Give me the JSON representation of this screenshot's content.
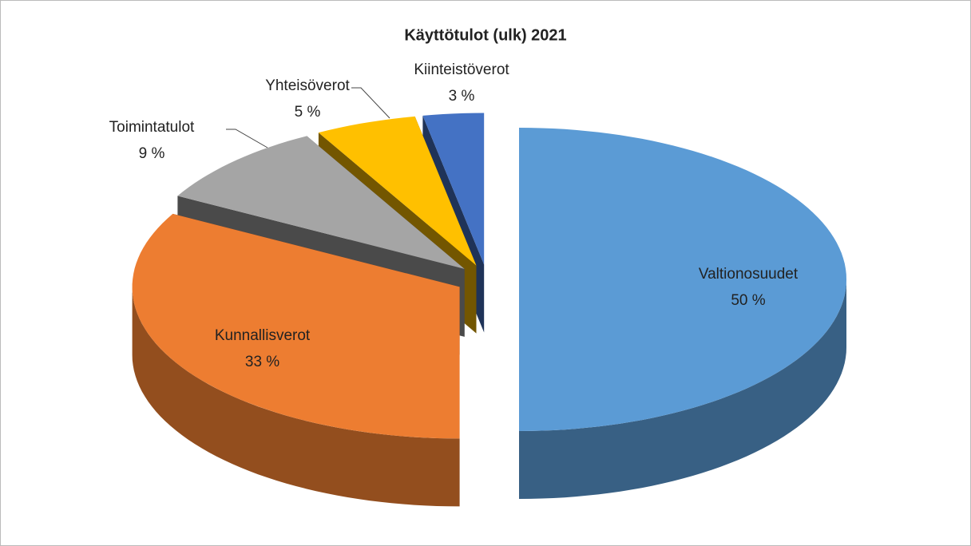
{
  "chart_data": {
    "type": "pie",
    "title": "Käyttötulot (ulk) 2021",
    "categories": [
      "Valtionosuudet",
      "Kunnallisverot",
      "Toimintatulot",
      "Yhteisöverot",
      "Kiinteistöverot"
    ],
    "values": [
      50,
      33,
      9,
      5,
      3
    ],
    "value_labels": [
      "50 %",
      "33 %",
      "9 %",
      "5 %",
      "3 %"
    ],
    "colors": [
      "#5b9bd5",
      "#ed7d31",
      "#a5a5a5",
      "#ffc000",
      "#4472c4"
    ]
  }
}
